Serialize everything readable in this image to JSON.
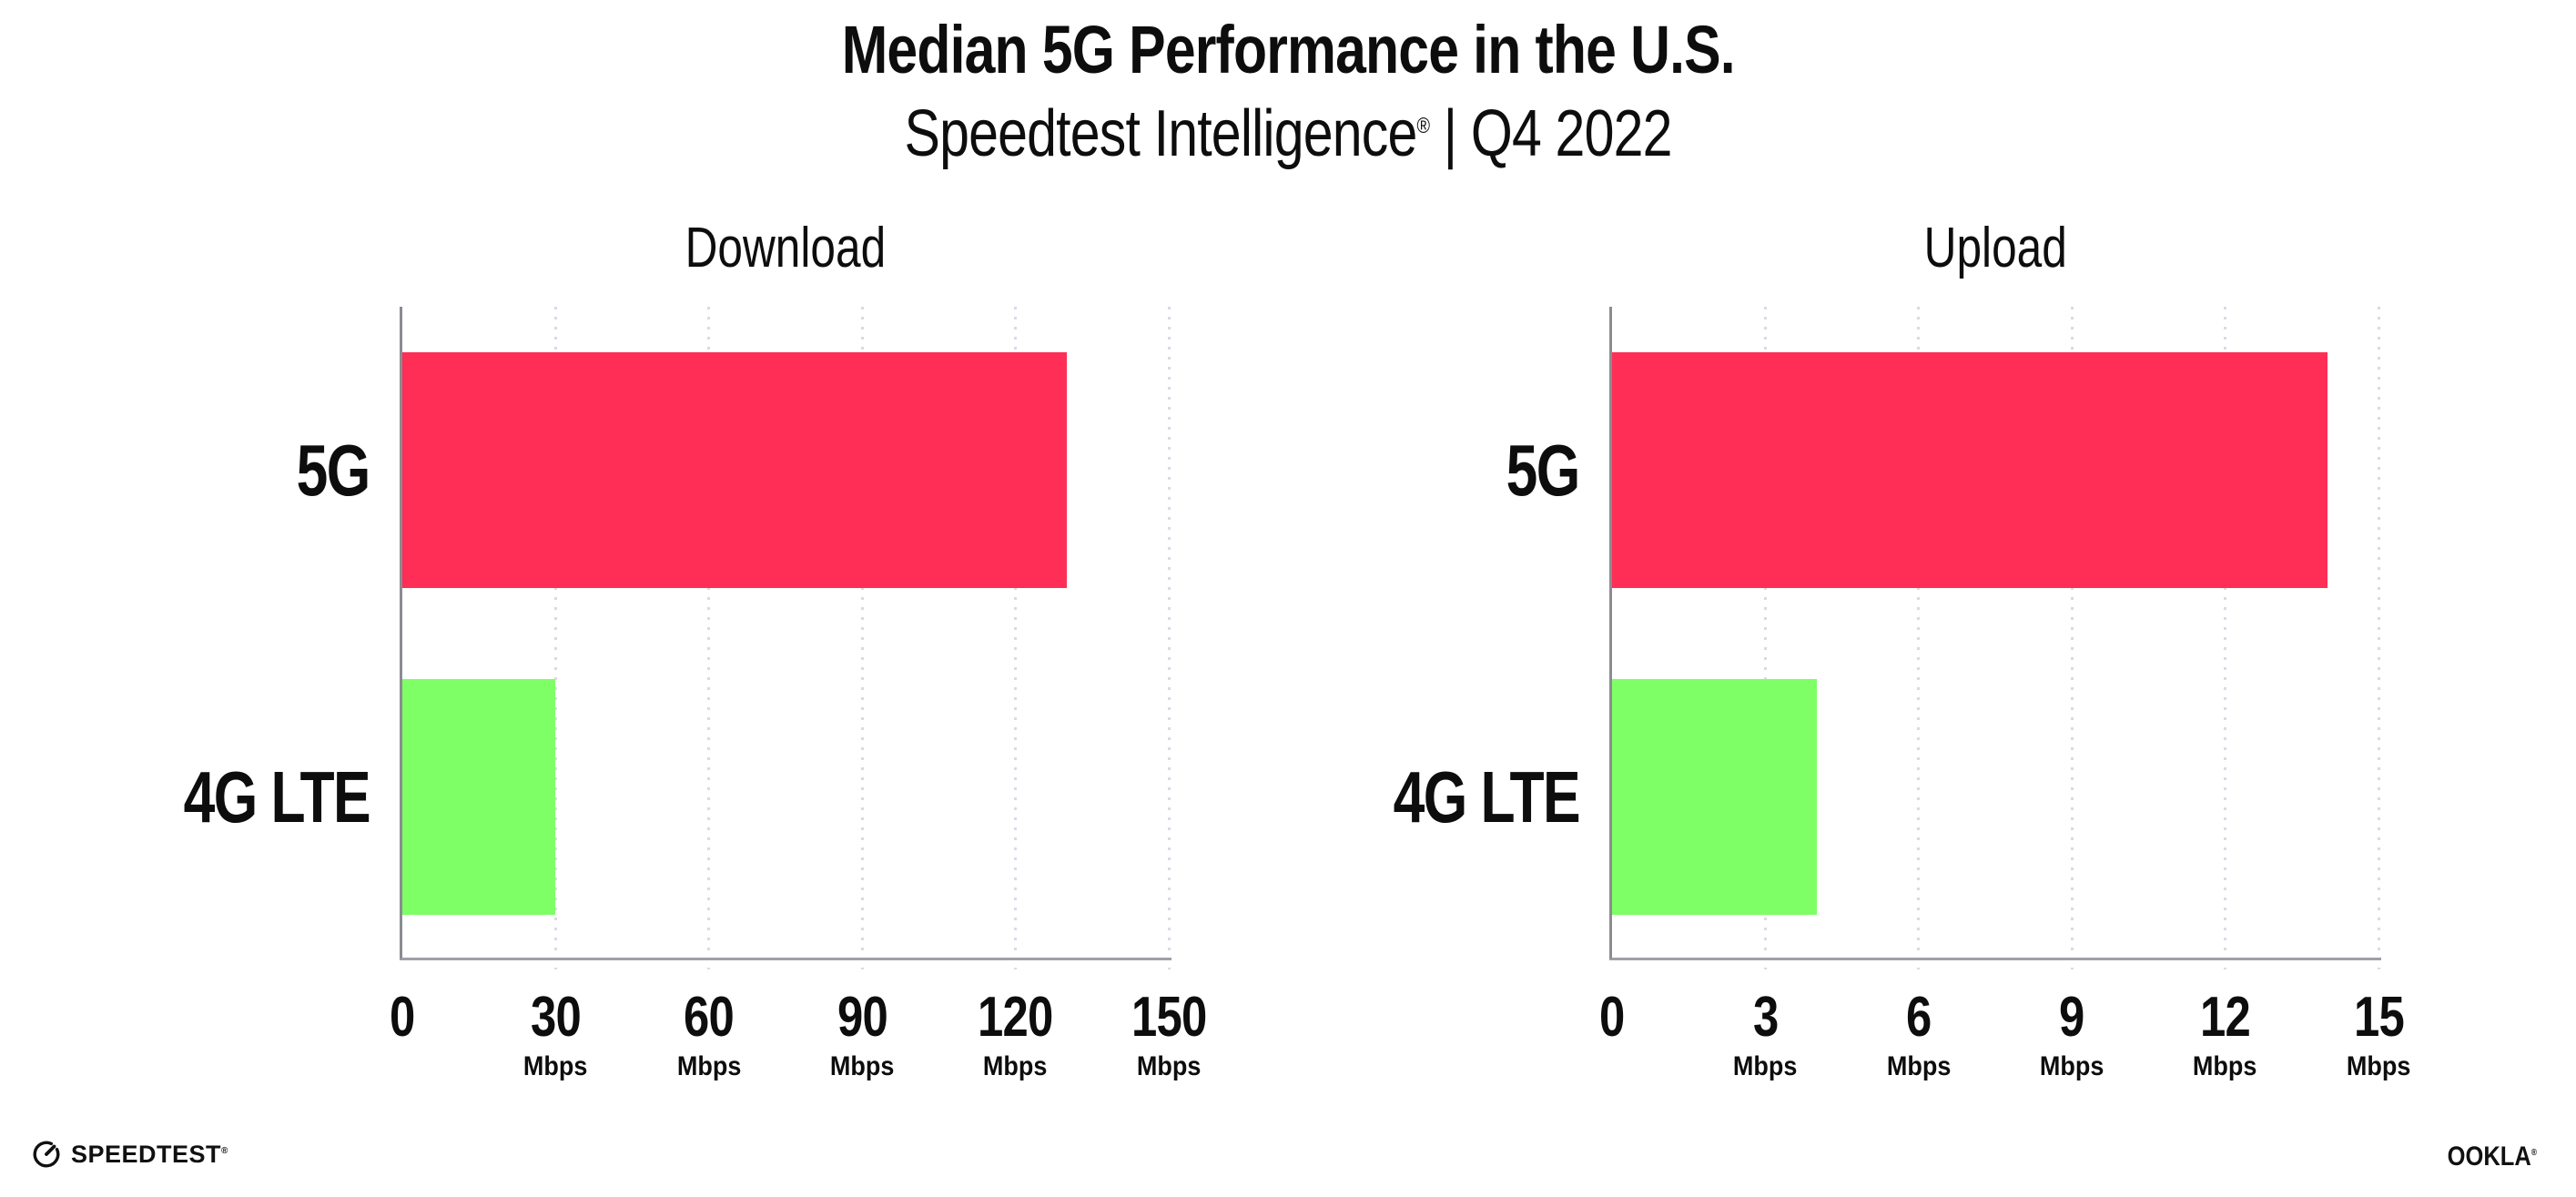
{
  "header": {
    "title": "Median 5G Performance in the U.S.",
    "subtitle_brand": "Speedtest Intelligence",
    "subtitle_reg": "®",
    "subtitle_rest": "| Q4 2022"
  },
  "footer": {
    "speedtest_label": "SPEEDTEST",
    "speedtest_reg": "®",
    "ookla_label": "OOKLA",
    "ookla_reg": "®"
  },
  "colors": {
    "bar_5g": "#FF2E56",
    "bar_4g_lte": "#7EFF66",
    "axis_spine": "#8A8C90",
    "axis_line": "#9EA0A6",
    "gridline_dots": "#D9DAE6",
    "text": "#0D0D0D"
  },
  "chart_data": [
    {
      "type": "bar",
      "orientation": "horizontal",
      "title": "Download",
      "categories": [
        "5G",
        "4G LTE"
      ],
      "values": [
        130,
        30
      ],
      "bar_colors": [
        "#FF2E56",
        "#7EFF66"
      ],
      "unit": "Mbps",
      "xlim": [
        0,
        150
      ],
      "xticks": [
        0,
        30,
        60,
        90,
        120,
        150
      ],
      "grid": "dotted-vertical",
      "legend": "none"
    },
    {
      "type": "bar",
      "orientation": "horizontal",
      "title": "Upload",
      "categories": [
        "5G",
        "4G LTE"
      ],
      "values": [
        14,
        4
      ],
      "bar_colors": [
        "#FF2E56",
        "#7EFF66"
      ],
      "unit": "Mbps",
      "xlim": [
        0,
        15
      ],
      "xticks": [
        0,
        3,
        6,
        9,
        12,
        15
      ],
      "grid": "dotted-vertical",
      "legend": "none"
    }
  ]
}
